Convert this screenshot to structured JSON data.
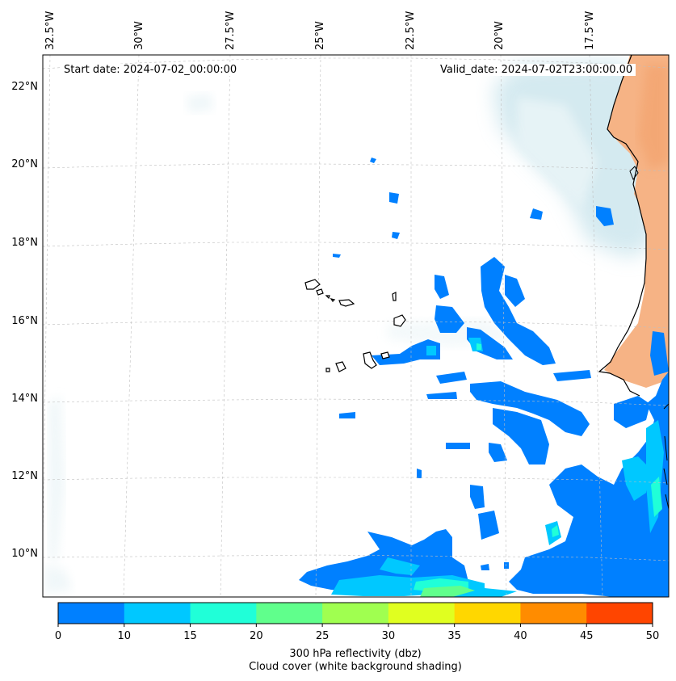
{
  "header": {
    "start_date": "Start date: 2024-07-02_00:00:00",
    "valid_date": "Valid_date: 2024-07-02T23:00:00.00"
  },
  "map": {
    "lon_labels": [
      "32.5°W",
      "30°W",
      "27.5°W",
      "25°W",
      "22.5°W",
      "20°W",
      "17.5°W"
    ],
    "lat_labels": [
      "22°N",
      "20°N",
      "18°N",
      "16°N",
      "14°N",
      "12°N",
      "10°N"
    ],
    "cloud_color": "#add8e6",
    "land_color": "#f4a460",
    "coast_color": "#000000"
  },
  "colorbar": {
    "ticks": [
      "0",
      "10",
      "15",
      "20",
      "25",
      "30",
      "35",
      "40",
      "45",
      "50"
    ],
    "colors": [
      "#0080ff",
      "#00c8ff",
      "#20ffd8",
      "#60ff8c",
      "#a0ff50",
      "#e0ff20",
      "#ffd700",
      "#ff8c00",
      "#ff4500"
    ],
    "label": "300 hPa reflectivity (dbz)",
    "sublabel": "Cloud cover (white background shading)"
  }
}
